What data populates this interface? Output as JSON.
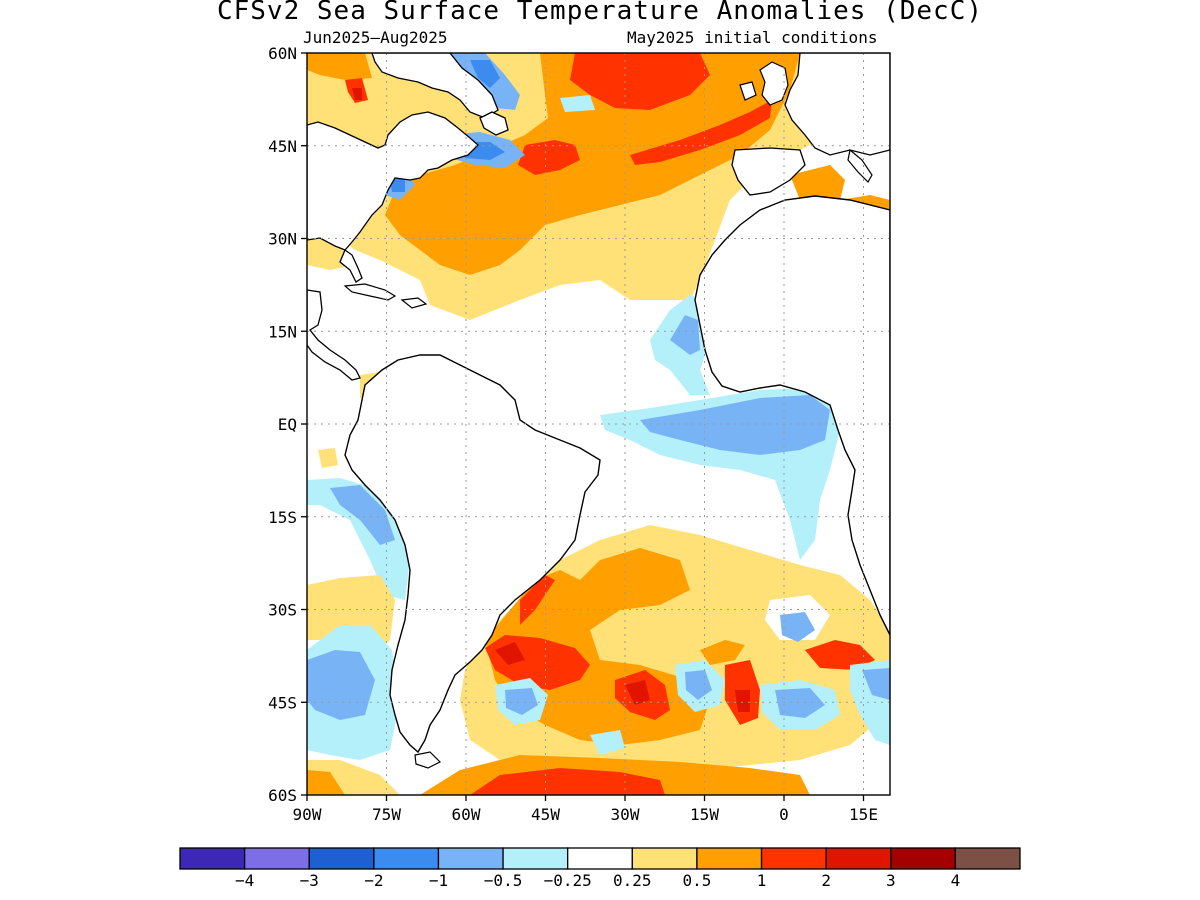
{
  "title": "CFSv2 Sea Surface Temperature Anomalies (DecC)",
  "subtitle_left": "Jun2025–Aug2025",
  "subtitle_right": "May2025 initial conditions",
  "map": {
    "lon_range": [
      -90,
      20
    ],
    "lat_range": [
      -60,
      60
    ],
    "grid": true,
    "lat_ticks": [
      {
        "value": 60,
        "label": "60N"
      },
      {
        "value": 45,
        "label": "45N"
      },
      {
        "value": 30,
        "label": "30N"
      },
      {
        "value": 15,
        "label": "15N"
      },
      {
        "value": 0,
        "label": "EQ"
      },
      {
        "value": -15,
        "label": "15S"
      },
      {
        "value": -30,
        "label": "30S"
      },
      {
        "value": -45,
        "label": "45S"
      },
      {
        "value": -60,
        "label": "60S"
      }
    ],
    "lon_ticks": [
      {
        "value": -90,
        "label": "90W"
      },
      {
        "value": -75,
        "label": "75W"
      },
      {
        "value": -60,
        "label": "60W"
      },
      {
        "value": -45,
        "label": "45W"
      },
      {
        "value": -30,
        "label": "30W"
      },
      {
        "value": -15,
        "label": "15W"
      },
      {
        "value": 0,
        "label": "0"
      },
      {
        "value": 15,
        "label": "15E"
      }
    ]
  },
  "colorbar": {
    "colors": [
      "#3c28b4",
      "#7d6ee6",
      "#1e5fd2",
      "#3c8cf0",
      "#78b4f5",
      "#b4f0fa",
      "#ffffff",
      "#ffe178",
      "#ffa000",
      "#ff3200",
      "#e11400",
      "#a50000",
      "#7d5046"
    ],
    "labels": [
      "−4",
      "−3",
      "−2",
      "−1",
      "−0.5",
      "−0.25",
      "0.25",
      "0.5",
      "1",
      "2",
      "3",
      "4"
    ]
  },
  "colors": {
    "land": "#ffffff",
    "coast": "#000000",
    "grid": "#9a9a9a"
  }
}
